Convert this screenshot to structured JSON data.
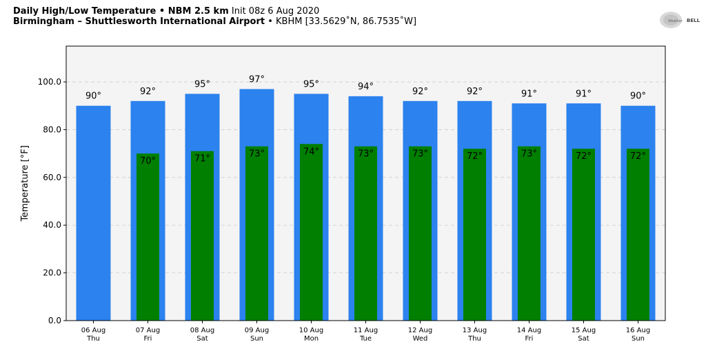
{
  "header": {
    "title_bold": "Daily High/Low Temperature • NBM 2.5 km",
    "title_init": "Init 08z 6 Aug 2020",
    "location_bold": "Birmingham – Shuttlesworth International Airport",
    "location_detail": "• KBHM [33.5629˚N, 86.7535˚W]"
  },
  "logo": {
    "text_left": "Weather",
    "text_right": "BELL"
  },
  "colors": {
    "high_bar": "#2c82ee",
    "low_bar": "#007f00",
    "plot_bg": "#f4f4f4",
    "grid": "#cccccc"
  },
  "chart_data": {
    "type": "bar",
    "ylabel": "Temperature [°F]",
    "ylim": [
      0,
      115
    ],
    "yticks": [
      "0.0",
      "20.0",
      "40.0",
      "60.0",
      "80.0",
      "100.0"
    ],
    "ytick_values": [
      0,
      20,
      40,
      60,
      80,
      100
    ],
    "grid": true,
    "categories": [
      "06 Aug",
      "07 Aug",
      "08 Aug",
      "09 Aug",
      "10 Aug",
      "11 Aug",
      "12 Aug",
      "13 Aug",
      "14 Aug",
      "15 Aug",
      "16 Aug"
    ],
    "weekdays": [
      "Thu",
      "Fri",
      "Sat",
      "Sun",
      "Mon",
      "Tue",
      "Wed",
      "Thu",
      "Fri",
      "Sat",
      "Sun"
    ],
    "series": [
      {
        "values": [
          90,
          92,
          95,
          97,
          95,
          94,
          92,
          92,
          91,
          91,
          90
        ],
        "labels": [
          "90°",
          "92°",
          "95°",
          "97°",
          "95°",
          "94°",
          "92°",
          "92°",
          "91°",
          "91°",
          "90°"
        ]
      },
      {
        "values": [
          null,
          70,
          71,
          73,
          74,
          73,
          73,
          72,
          73,
          72,
          72
        ],
        "labels": [
          "",
          "70°",
          "71°",
          "73°",
          "74°",
          "73°",
          "73°",
          "72°",
          "73°",
          "72°",
          "72°"
        ]
      }
    ]
  }
}
